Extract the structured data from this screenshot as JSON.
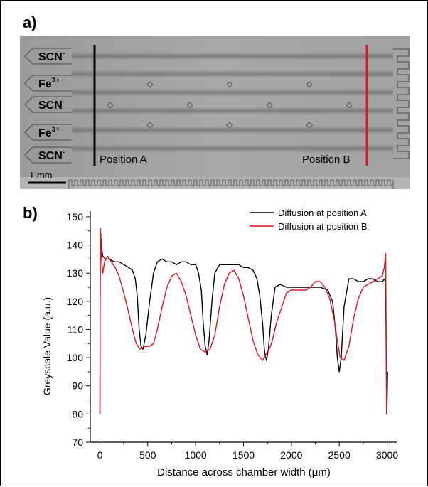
{
  "panel_a": {
    "label": "a)",
    "inlet_labels": [
      {
        "base": "SCN",
        "sup": "-"
      },
      {
        "base": "Fe",
        "sup": "3+"
      },
      {
        "base": "SCN",
        "sup": "-"
      },
      {
        "base": "Fe",
        "sup": "3+"
      },
      {
        "base": "SCN",
        "sup": "-"
      }
    ],
    "position_a_label": "Position A",
    "position_b_label": "Position B",
    "scale_bar_label": "1 mm",
    "colors": {
      "position_a": "#000000",
      "position_b": "#e4131b"
    }
  },
  "chart_data": {
    "type": "line",
    "panel_label": "b)",
    "xlabel": "Distance across chamber width (μm)",
    "ylabel": "Greyscale Value (a.u.)",
    "xlim": [
      -100,
      3100
    ],
    "ylim": [
      70,
      152
    ],
    "xticks": [
      0,
      500,
      1000,
      1500,
      2000,
      2500,
      3000
    ],
    "yticks": [
      70,
      75,
      80,
      85,
      90,
      95,
      100,
      105,
      110,
      115,
      120,
      125,
      130,
      135,
      140,
      145,
      150
    ],
    "yticks_labeled": [
      70,
      80,
      90,
      100,
      110,
      120,
      130,
      140,
      150
    ],
    "legend_position": "top-right",
    "series": [
      {
        "name": "Diffusion at position A",
        "color": "#000000",
        "x": [
          0,
          5,
          15,
          30,
          60,
          100,
          150,
          200,
          250,
          300,
          340,
          370,
          390,
          410,
          430,
          450,
          480,
          520,
          560,
          600,
          650,
          700,
          750,
          800,
          850,
          900,
          950,
          1000,
          1030,
          1060,
          1080,
          1100,
          1120,
          1140,
          1170,
          1200,
          1250,
          1300,
          1350,
          1400,
          1450,
          1500,
          1550,
          1600,
          1640,
          1670,
          1700,
          1720,
          1740,
          1760,
          1790,
          1830,
          1880,
          1950,
          2000,
          2100,
          2200,
          2300,
          2380,
          2430,
          2460,
          2480,
          2500,
          2520,
          2550,
          2600,
          2650,
          2700,
          2750,
          2800,
          2850,
          2900,
          2950,
          2975,
          2985,
          2995,
          3000,
          3005
        ],
        "y": [
          80,
          146,
          140,
          136,
          135,
          135,
          134,
          134,
          133,
          132,
          131,
          128,
          122,
          110,
          104,
          103,
          108,
          120,
          130,
          134,
          135,
          134,
          134,
          133,
          134,
          134,
          133,
          133,
          130,
          124,
          112,
          104,
          101,
          106,
          120,
          130,
          133,
          133,
          133,
          133,
          133,
          132,
          132,
          131,
          128,
          122,
          112,
          102,
          99,
          103,
          115,
          125,
          126,
          125,
          125,
          125,
          125,
          125,
          124,
          120,
          110,
          100,
          95,
          100,
          118,
          128,
          128,
          127,
          127,
          128,
          128,
          127,
          127,
          128,
          125,
          80,
          85,
          95
        ]
      },
      {
        "name": "Diffusion at position B",
        "color": "#e4131b",
        "x": [
          0,
          5,
          15,
          30,
          50,
          80,
          120,
          160,
          200,
          250,
          300,
          340,
          380,
          420,
          470,
          520,
          560,
          600,
          650,
          700,
          750,
          800,
          850,
          900,
          950,
          1000,
          1050,
          1100,
          1150,
          1200,
          1250,
          1300,
          1350,
          1400,
          1450,
          1500,
          1550,
          1600,
          1650,
          1700,
          1750,
          1780,
          1800,
          1850,
          1900,
          1950,
          2000,
          2050,
          2100,
          2150,
          2200,
          2250,
          2300,
          2350,
          2400,
          2450,
          2480,
          2510,
          2550,
          2600,
          2650,
          2700,
          2750,
          2800,
          2850,
          2900,
          2950,
          2970,
          2985,
          2995,
          3000
        ],
        "y": [
          80,
          146,
          136,
          130,
          134,
          136,
          134,
          132,
          129,
          123,
          116,
          110,
          105,
          103,
          104,
          104,
          105,
          110,
          118,
          125,
          129,
          130,
          127,
          122,
          115,
          108,
          103,
          102,
          103,
          108,
          118,
          126,
          130,
          131,
          128,
          122,
          114,
          106,
          101,
          99,
          102,
          104,
          106,
          113,
          118,
          123,
          124,
          124,
          124,
          124,
          125,
          127,
          127,
          125,
          121,
          113,
          106,
          100,
          99,
          104,
          114,
          121,
          125,
          126,
          127,
          128,
          129,
          132,
          137,
          80,
          80
        ]
      }
    ]
  }
}
